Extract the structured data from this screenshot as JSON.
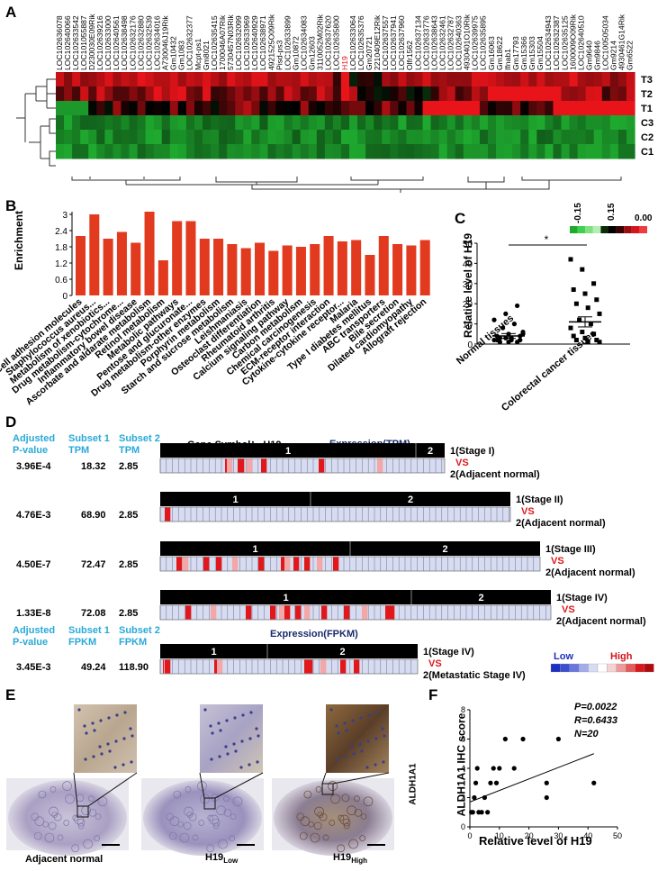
{
  "panels": {
    "A": "A",
    "B": "B",
    "C": "C",
    "D": "D",
    "E": "E",
    "F": "F"
  },
  "panelA": {
    "genes_left": [
      "LOC102636078",
      "LOC102640066",
      "LOC102633542",
      "LOC101055887",
      "D230030E09Rik",
      "LOC102639216",
      "LOC102633000",
      "LOC102640561",
      "LOC102638498",
      "LOC102632176",
      "LOC102632880",
      "LOC102632539",
      "LOC102634016",
      "A730046J19Rik",
      "Gm10432",
      "Gm1083",
      "LOC102632377",
      "Mcpt-ps1",
      "Gm8021",
      "LOC102635415",
      "1700046A07Rik",
      "5730457N03Rik",
      "LOC102632099",
      "LOC102633969",
      "LOC102640929",
      "LOC102638971",
      "4921525O09Rik",
      "Pisd-ps3",
      "LOC102633899",
      "Gm10872",
      "LOC102634083",
      "Gm12603",
      "3110052M02Rik",
      "LOC102637620",
      "LOC102635800"
    ],
    "gene_highlight": "H19",
    "genes_right": [
      "LOC102633064",
      "LOC102635376",
      "Gm20721",
      "2210409E12Rik",
      "LOC102637557",
      "LOC102637941",
      "LOC102637960",
      "Olfr1562",
      "LOC102637134",
      "LOC102633776",
      "LOC102638643",
      "LOC102632461",
      "LOC102632787",
      "LOC102640363",
      "4930401O10Rik",
      "LOC102639975",
      "LOC102635895",
      "Gm16063",
      "Gm18622",
      "Ifnab1",
      "Gm17793",
      "Gm15366",
      "Gm15303",
      "Gm15504",
      "LOC102634943",
      "LOC102632387",
      "LOC102635125",
      "1600009O09Rik",
      "LOC102640510",
      "Gm9640",
      "Gm9846",
      "LOC100505034",
      "Gm9214",
      "4930461G14Rik",
      "Gm6522"
    ],
    "rows": [
      "T3",
      "T2",
      "T1",
      "C3",
      "C2",
      "C1"
    ],
    "colorbar_labels": [
      "-0.15",
      "0.15",
      "0.00"
    ],
    "colors": {
      "low": "#1faa2f",
      "mid": "#000000",
      "high": "#e8141a"
    }
  },
  "panelB": {
    "ylabel": "Enrichment",
    "yticks": [
      "3",
      "2.4",
      "1.8",
      "1.2",
      "0.6",
      "0"
    ],
    "categories": [
      "Cell adhesion molecules",
      "Staphylococcus aureus...",
      "Metabolism of xenobiotics...",
      "Drug metabolism-cytochrome...",
      "Inflammatory bowel disease",
      "Ascorbate and aldarate metabolism",
      "Retinol metabolism",
      "Metabolic pathways",
      "Pentose and glucuronate...",
      "Drug metabolism-other enzymes",
      "Porphyrin metabolism",
      "Starch and sucrose metabolism",
      "Leishmaniasis",
      "Osteoclast differentiation",
      "Rheumatoid arthritis",
      "Calcium signaling pathway",
      "Carbon metabolism",
      "Chemical carcinogenesis",
      "ECM-receptor interaction",
      "Cytokine-cytokine receptor...",
      "Malaria",
      "Type I diabetes mellitus",
      "ABC transporters",
      "Bile secretion",
      "Dilated cardiomyopathy",
      "Allograft rejection"
    ]
  },
  "chart_data": {
    "type": "bar",
    "title": "",
    "xlabel": "",
    "ylabel": "Enrichment",
    "ylim": [
      0,
      3.2
    ],
    "values": [
      2.2,
      3.0,
      2.1,
      2.35,
      1.95,
      3.1,
      1.3,
      2.75,
      2.75,
      2.1,
      2.1,
      1.9,
      1.75,
      1.95,
      1.65,
      1.85,
      1.8,
      1.9,
      2.2,
      2.0,
      2.05,
      1.5,
      2.2,
      1.9,
      1.85,
      2.05
    ],
    "series_color": "#e23a1f"
  },
  "panelC": {
    "ylabel": "Relative level of H19",
    "yticks": [
      "50",
      "40",
      "30",
      "20",
      "10",
      "0"
    ],
    "groups": [
      "Normal tissues",
      "Colorectal  cancer tissues"
    ],
    "significance": "*",
    "normal_points": [
      2,
      3,
      1,
      4,
      5,
      2,
      1,
      3,
      6,
      8,
      10,
      12,
      15,
      19,
      2,
      1,
      4,
      3,
      2,
      5
    ],
    "cancer_points": [
      42,
      37,
      30,
      27,
      25,
      22,
      20,
      18,
      15,
      12,
      10,
      8,
      6,
      5,
      4,
      3,
      2,
      2,
      1,
      1
    ],
    "normal_mean": 4,
    "normal_sem": 1.2,
    "cancer_mean": 11,
    "cancer_sem": 2.5
  },
  "panelD": {
    "headers_tpm": [
      "Adjusted P-value",
      "Subset 1 TPM",
      "Subset 2 TPM"
    ],
    "headers_fpkm": [
      "Adjusted P-value",
      "Subset 1 FPKM",
      "Subset 2 FPKM"
    ],
    "gene_symbol": "Gene Symbol： H19",
    "expression_tpm": "Expression(TPM)",
    "expression_fpkm": "Expression(FPKM)",
    "rows": [
      {
        "p": "3.96E-4",
        "s1": "18.32",
        "s2": "2.85",
        "stage": "1(Stage I)",
        "vs": "VS",
        "ref": "2(Adjacent normal)"
      },
      {
        "p": "4.76E-3",
        "s1": "68.90",
        "s2": "2.85",
        "stage": "1(Stage II)",
        "vs": "VS",
        "ref": "2(Adjacent normal)"
      },
      {
        "p": "4.50E-7",
        "s1": "72.47",
        "s2": "2.85",
        "stage": "1(Stage III)",
        "vs": "VS",
        "ref": "2(Adjacent normal)"
      },
      {
        "p": "1.33E-8",
        "s1": "72.08",
        "s2": "2.85",
        "stage": "1(Stage  IV)",
        "vs": "VS",
        "ref": "2(Adjacent normal)"
      },
      {
        "p": "3.45E-3",
        "s1": "49.24",
        "s2": "118.90",
        "stage": "1(Stage  IV)",
        "vs": "VS",
        "ref": "2(Metastatic Stage IV)"
      }
    ],
    "group1": "1",
    "group2": "2",
    "legend_low": "Low",
    "legend_high": "High"
  },
  "panelE": {
    "labels": [
      "Adjacent normal",
      "H19",
      "H19"
    ],
    "subscripts": [
      "",
      "Low",
      "High"
    ],
    "side_label": "ALDH1A1"
  },
  "panelF": {
    "ylabel": "ALDH1A1 IHC score",
    "xlabel": "Relative level of H19",
    "stats": [
      "P=0.0022",
      "R=0.6433",
      "N=20"
    ],
    "xticks": [
      "0",
      "10",
      "20",
      "30",
      "40",
      "50"
    ],
    "yticks": [
      "0",
      "2",
      "4",
      "6",
      "8"
    ]
  }
}
